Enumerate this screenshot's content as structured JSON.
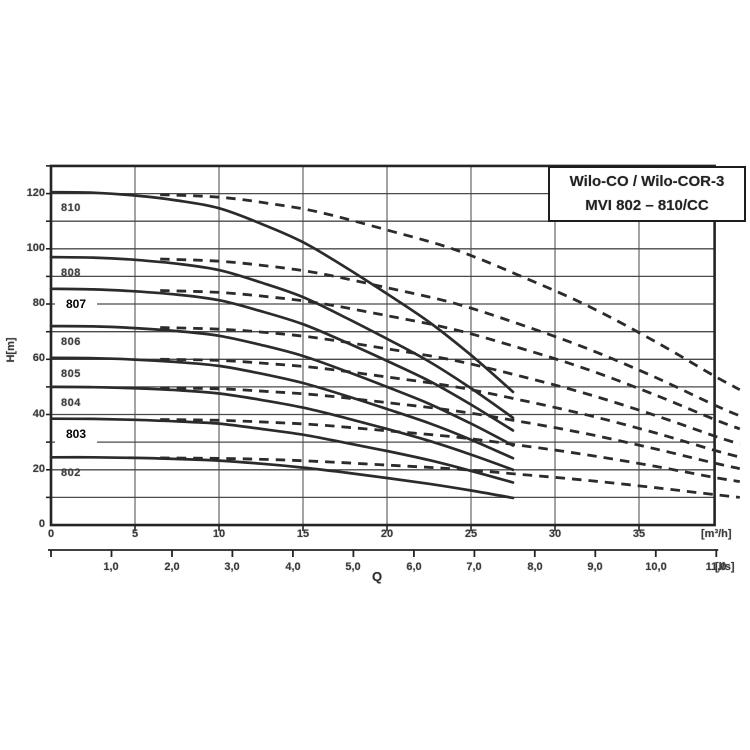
{
  "title_box": {
    "line1": "Wilo-CO / Wilo-COR-3",
    "line2": "MVI 802 – 810/CC"
  },
  "chart_data": {
    "type": "line",
    "title": "Wilo-CO / Wilo-COR-3 MVI 802 – 810/CC pump curves",
    "ylabel": "H[m]",
    "xlabel_primary_unit": "[m³/h]",
    "xlabel_secondary_unit": "[l/s]",
    "flow_label": "Q",
    "y_axis": {
      "min": 0,
      "max": 130,
      "gridline_step": 10,
      "tick_labels": [
        0,
        20,
        40,
        60,
        80,
        100,
        120
      ]
    },
    "x_axis_m3h": {
      "min": 0,
      "max": 39.5,
      "gridline_step": 5,
      "tick_labels": [
        0,
        5,
        10,
        15,
        20,
        25,
        30,
        35
      ]
    },
    "x_axis_ls": {
      "tick_values": [
        1,
        2,
        3,
        4,
        5,
        6,
        7,
        8,
        9,
        10,
        11
      ],
      "tick_labels": [
        "1,0",
        "2,0",
        "3,0",
        "4,0",
        "5,0",
        "6,0",
        "7,0",
        "8,0",
        "9,0",
        "10,0",
        "11,0"
      ]
    },
    "q_solid": [
      0,
      2.5,
      5,
      7.5,
      10,
      12.5,
      15,
      17.5,
      20,
      22.5,
      25,
      27.5
    ],
    "q_dashed": [
      6.5,
      10,
      13,
      16,
      20,
      24,
      28,
      32,
      36,
      39.5,
      41
    ],
    "series": [
      {
        "pump": "810",
        "boxed": false,
        "shutoff_head_m": 120.5,
        "h_solid": [
          120.5,
          120.3,
          119.3,
          117.5,
          114.7,
          109.1,
          102.4,
          93.4,
          83.7,
          73.5,
          61.5,
          48.2
        ],
        "h_dashed": [
          119.6,
          118.7,
          116.4,
          113.2,
          106.8,
          99.8,
          90.0,
          79.2,
          66.3,
          53.9,
          49.0
        ]
      },
      {
        "pump": "808",
        "boxed": false,
        "shutoff_head_m": 97,
        "h_solid": [
          97,
          96.8,
          96.0,
          94.6,
          92.3,
          87.8,
          82.5,
          75.2,
          67.4,
          59.2,
          49.5,
          38.8
        ],
        "h_dashed": [
          96.3,
          95.5,
          93.7,
          91.1,
          85.9,
          80.3,
          72.5,
          63.7,
          53.4,
          43.4,
          39.5
        ]
      },
      {
        "pump": "807",
        "boxed": true,
        "shutoff_head_m": 85.5,
        "h_solid": [
          85.5,
          85.3,
          84.6,
          83.4,
          81.4,
          77.4,
          72.7,
          66.3,
          59.4,
          52.2,
          43.6,
          34.2
        ],
        "h_dashed": [
          84.9,
          84.2,
          82.6,
          80.3,
          75.8,
          70.8,
          63.9,
          56.2,
          47.0,
          38.2,
          34.8
        ]
      },
      {
        "pump": "806",
        "boxed": false,
        "shutoff_head_m": 72,
        "h_solid": [
          72,
          71.9,
          71.3,
          70.2,
          68.5,
          65.2,
          61.2,
          55.8,
          50.0,
          43.9,
          36.7,
          28.8
        ],
        "h_dashed": [
          71.5,
          70.9,
          69.6,
          67.6,
          63.8,
          59.6,
          53.8,
          47.3,
          39.6,
          32.2,
          29.3
        ]
      },
      {
        "pump": "805",
        "boxed": false,
        "shutoff_head_m": 60.5,
        "h_solid": [
          60.5,
          60.4,
          59.9,
          59.0,
          57.6,
          54.8,
          51.4,
          46.9,
          42.0,
          36.9,
          30.9,
          24.2
        ],
        "h_dashed": [
          60.0,
          59.6,
          58.4,
          56.8,
          53.6,
          50.1,
          45.2,
          39.7,
          33.3,
          27.0,
          24.6
        ]
      },
      {
        "pump": "804",
        "boxed": false,
        "shutoff_head_m": 50,
        "h_solid": [
          50,
          49.9,
          49.5,
          48.8,
          47.6,
          45.3,
          42.5,
          38.8,
          34.8,
          30.5,
          25.5,
          20.0
        ],
        "h_dashed": [
          49.6,
          49.3,
          48.3,
          47.0,
          44.3,
          41.4,
          37.4,
          32.9,
          27.5,
          22.4,
          20.4
        ]
      },
      {
        "pump": "803",
        "boxed": true,
        "shutoff_head_m": 38.5,
        "h_solid": [
          38.5,
          38.4,
          38.1,
          37.5,
          36.7,
          34.8,
          32.7,
          29.8,
          26.8,
          23.5,
          19.6,
          15.4
        ],
        "h_dashed": [
          38.2,
          37.9,
          37.2,
          36.2,
          34.1,
          31.9,
          28.8,
          25.3,
          21.2,
          17.2,
          15.7
        ]
      },
      {
        "pump": "802",
        "boxed": false,
        "shutoff_head_m": 24.5,
        "h_solid": [
          24.5,
          24.5,
          24.3,
          23.9,
          23.3,
          22.2,
          20.8,
          19.0,
          17.0,
          14.9,
          12.5,
          9.8
        ],
        "h_dashed": [
          24.3,
          24.1,
          23.7,
          23.0,
          21.7,
          20.3,
          18.3,
          16.1,
          13.5,
          11.0,
          10.0
        ]
      }
    ],
    "colors": {
      "curve": "#2b2b2b",
      "h_gridline": "#4a4a4a",
      "v_gridline": "#8c8c8c",
      "frame": "#242424",
      "text": "#3b3b3b",
      "background": "#ffffff"
    },
    "legend_position": "none",
    "grid": true
  }
}
